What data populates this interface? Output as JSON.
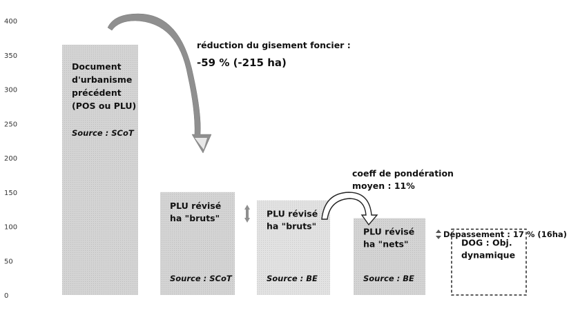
{
  "chart_data": {
    "type": "bar",
    "ylim": [
      0,
      400
    ],
    "yticks": [
      "400",
      "350",
      "300",
      "250",
      "200",
      "150",
      "100",
      "50",
      "0"
    ],
    "bars": [
      {
        "value": 365,
        "label_lines": [
          "Document",
          "d'urbanisme",
          "précédent",
          "(POS ou PLU)"
        ],
        "source": "Source : SCoT"
      },
      {
        "value": 150,
        "label_lines": [
          "PLU révisé",
          "ha \"bruts\""
        ],
        "source": "Source : SCoT"
      },
      {
        "value": 138,
        "label_lines": [
          "PLU révisé",
          "ha \"bruts\""
        ],
        "source": "Source : BE"
      },
      {
        "value": 112,
        "label_lines": [
          "PLU révisé",
          "ha \"nets\""
        ],
        "source": "Source : BE"
      },
      {
        "value": 96,
        "label_lines": [
          "DOG : Obj.",
          "dynamique"
        ],
        "source": ""
      }
    ],
    "annotations": {
      "reduction_line1": "réduction du gisement foncier :",
      "reduction_line2": "-59 % (-215 ha)",
      "coeff_line1": "coeff de pondération",
      "coeff_line2": "moyen : 11%",
      "depassement": "Dépassement : 17 % (16ha)"
    }
  },
  "colors": {
    "bar_fill": "#d6d6d6",
    "bar_fill_light": "#e3e3e3",
    "arrow_fill": "#8f8f8f",
    "dashed_border": "#222222"
  }
}
